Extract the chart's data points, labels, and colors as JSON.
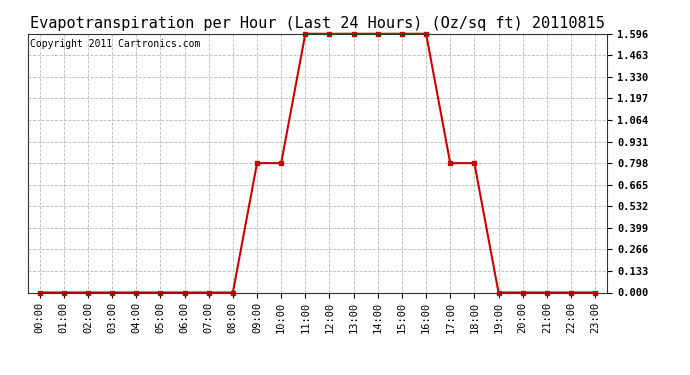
{
  "title": "Evapotranspiration per Hour (Last 24 Hours) (Oz/sq ft) 20110815",
  "copyright": "Copyright 2011 Cartronics.com",
  "x_labels": [
    "00:00",
    "01:00",
    "02:00",
    "03:00",
    "04:00",
    "05:00",
    "06:00",
    "07:00",
    "08:00",
    "09:00",
    "10:00",
    "11:00",
    "12:00",
    "13:00",
    "14:00",
    "15:00",
    "16:00",
    "17:00",
    "18:00",
    "19:00",
    "20:00",
    "21:00",
    "22:00",
    "23:00"
  ],
  "y_values": [
    0.0,
    0.0,
    0.0,
    0.0,
    0.0,
    0.0,
    0.0,
    0.0,
    0.0,
    0.798,
    0.798,
    1.596,
    1.596,
    1.596,
    1.596,
    1.596,
    1.596,
    0.798,
    0.798,
    0.0,
    0.0,
    0.0,
    0.0,
    0.0
  ],
  "y_ticks": [
    0.0,
    0.133,
    0.266,
    0.399,
    0.532,
    0.665,
    0.798,
    0.931,
    1.064,
    1.197,
    1.33,
    1.463,
    1.596
  ],
  "ylim": [
    0.0,
    1.596
  ],
  "line_color": "#cc0000",
  "marker": "s",
  "marker_size": 3,
  "background_color": "#ffffff",
  "plot_bg_color": "#ffffff",
  "grid_color": "#bbbbbb",
  "title_fontsize": 11,
  "copyright_fontsize": 7,
  "tick_fontsize": 7.5,
  "line_width": 1.5
}
